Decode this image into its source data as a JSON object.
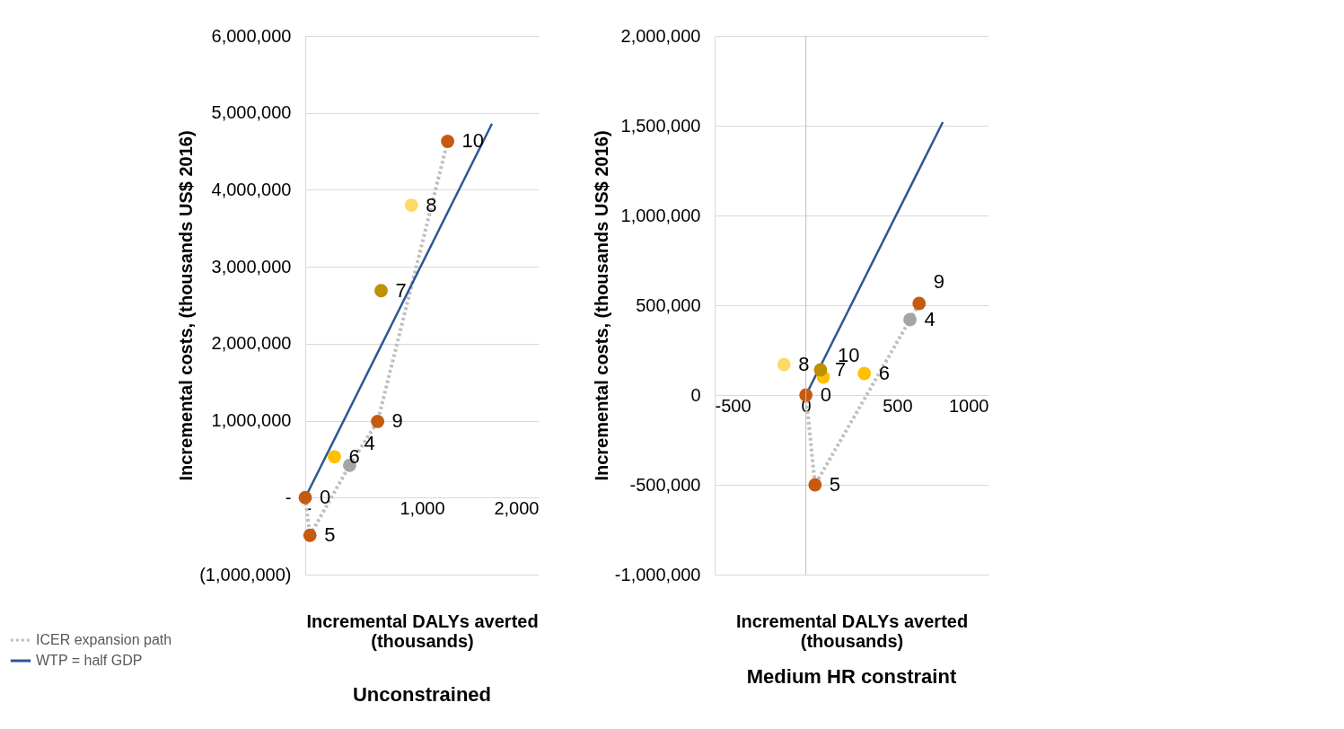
{
  "chart_data": [
    {
      "type": "scatter",
      "title": "Unconstrained",
      "xlabel": "Incremental DALYs averted\n(thousands)",
      "ylabel": "Incremental costs, (thousands US$ 2016)",
      "xlim": [
        0,
        2000
      ],
      "xticks": [
        {
          "value": 0,
          "label": "-"
        },
        {
          "value": 1000,
          "label": "1,000"
        },
        {
          "value": 2000,
          "label": "2,000"
        }
      ],
      "ylim": [
        -1000000,
        6000000
      ],
      "yticks": [
        {
          "value": -1000000,
          "label": "(1,000,000)"
        },
        {
          "value": 0,
          "label": "-"
        },
        {
          "value": 1000000,
          "label": "1,000,000"
        },
        {
          "value": 2000000,
          "label": "2,000,000"
        },
        {
          "value": 3000000,
          "label": "3,000,000"
        },
        {
          "value": 4000000,
          "label": "4,000,000"
        },
        {
          "value": 5000000,
          "label": "5,000,000"
        },
        {
          "value": 6000000,
          "label": "6,000,000"
        }
      ],
      "grid": "y",
      "legend": "bottom left",
      "series": [
        {
          "name": "ICER expansion path",
          "type": "line",
          "line_style": "dotted",
          "color": "#bfbfbf",
          "x": [
            0,
            40,
            380,
            620,
            1220
          ],
          "values": [
            0,
            -490000,
            420000,
            990000,
            4630000
          ]
        },
        {
          "name": "WTP = half GDP",
          "type": "line",
          "line_style": "solid",
          "color": "#2f5597",
          "x": [
            0,
            1600
          ],
          "values": [
            0,
            4860000
          ]
        },
        {
          "type": "scatter",
          "marker": "circle",
          "x": [
            0,
            40,
            250,
            380,
            620,
            650,
            910,
            1220
          ],
          "values": [
            0,
            -490000,
            530000,
            420000,
            990000,
            2690000,
            3800000,
            4630000
          ],
          "colors": [
            "#c55a11",
            "#c55a11",
            "#ffc000",
            "#a5a5a5",
            "#c55a11",
            "#bf9000",
            "#ffd966",
            "#c55a11"
          ]
        }
      ],
      "annotations": [
        {
          "text": "0",
          "x": 0,
          "y": 0
        },
        {
          "text": "5",
          "x": 40,
          "y": -490000
        },
        {
          "text": "6",
          "x": 250,
          "y": 530000
        },
        {
          "text": "4",
          "x": 380,
          "y": 420000
        },
        {
          "text": "9",
          "x": 620,
          "y": 990000
        },
        {
          "text": "7",
          "x": 650,
          "y": 2690000
        },
        {
          "text": "8",
          "x": 910,
          "y": 3800000
        },
        {
          "text": "10",
          "x": 1220,
          "y": 4630000
        }
      ]
    },
    {
      "type": "scatter",
      "title": "Medium HR constraint",
      "xlabel": "Incremental DALYs averted\n(thousands)",
      "ylabel": "Incremental costs, (thousands US$ 2016)",
      "xlim": [
        -500,
        1000
      ],
      "xticks": [
        -500,
        0,
        500,
        1000
      ],
      "ylim": [
        -1000000,
        2000000
      ],
      "yticks": [
        {
          "value": -1000000,
          "label": "-1,000,000"
        },
        {
          "value": -500000,
          "label": "-500,000"
        },
        0,
        {
          "value": 500000,
          "label": "500,000"
        },
        {
          "value": 1000000,
          "label": "1,000,000"
        },
        {
          "value": 1500000,
          "label": "1,500,000"
        },
        {
          "value": 2000000,
          "label": "2,000,000"
        }
      ],
      "grid": "y",
      "ref_lines": [
        {
          "axis": "x",
          "value": 0,
          "color": "#bfbfbf"
        }
      ],
      "series": [
        {
          "type": "line",
          "line_style": "dotted",
          "color": "#bfbfbf",
          "x": [
            0,
            50,
            570,
            620
          ],
          "values": [
            0,
            -500000,
            420000,
            510000
          ]
        },
        {
          "type": "line",
          "line_style": "solid",
          "color": "#2f5597",
          "x": [
            0,
            750
          ],
          "values": [
            0,
            1520000
          ]
        },
        {
          "type": "scatter",
          "marker": "circle",
          "x": [
            0,
            50,
            570,
            620,
            320,
            95,
            80,
            -120
          ],
          "values": [
            0,
            -500000,
            420000,
            510000,
            120000,
            100000,
            140000,
            170000
          ],
          "colors": [
            "#c55a11",
            "#c55a11",
            "#a5a5a5",
            "#c55a11",
            "#ffc000",
            "#ffc000",
            "#bf9000",
            "#ffd966"
          ]
        }
      ],
      "annotations": [
        {
          "text": "0",
          "x": 0,
          "y": 0
        },
        {
          "text": "8",
          "x": -120,
          "y": 170000
        },
        {
          "text": "7",
          "x": 80,
          "y": 140000
        },
        {
          "text": "10",
          "x": 95,
          "y": 100000
        },
        {
          "text": "6",
          "x": 320,
          "y": 120000
        },
        {
          "text": "4",
          "x": 570,
          "y": 420000
        },
        {
          "text": "9",
          "x": 620,
          "y": 510000
        },
        {
          "text": "5",
          "x": 50,
          "y": -500000
        }
      ]
    }
  ]
}
